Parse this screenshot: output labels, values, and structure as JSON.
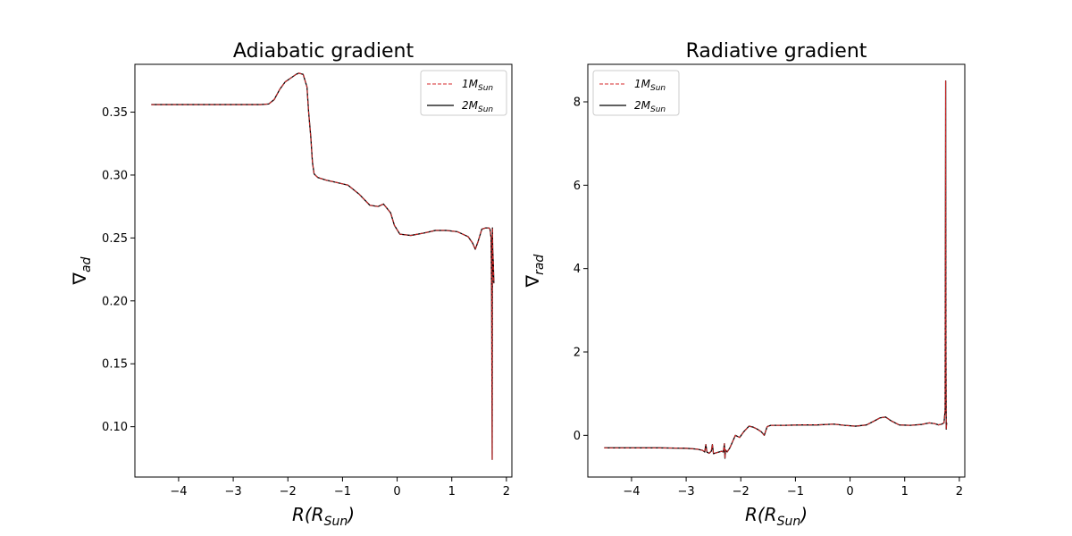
{
  "chart_data": [
    {
      "type": "line",
      "title": "Adiabatic gradient",
      "xlabel": {
        "base": "R(R",
        "sub": "Sun",
        "close": ")"
      },
      "ylabel": {
        "base": "∇",
        "sub": "ad"
      },
      "xlim": [
        -4.8,
        2.1
      ],
      "ylim": [
        0.06,
        0.388
      ],
      "xticks": [
        -4,
        -3,
        -2,
        -1,
        0,
        1,
        2
      ],
      "xtick_labels": [
        "−4",
        "−3",
        "−2",
        "−1",
        "0",
        "1",
        "2"
      ],
      "yticks": [
        0.1,
        0.15,
        0.2,
        0.25,
        0.3,
        0.35
      ],
      "ytick_labels": [
        "0.10",
        "0.15",
        "0.20",
        "0.25",
        "0.30",
        "0.35"
      ],
      "legend_position": "top-right",
      "grid": false,
      "series": [
        {
          "name": {
            "base": "1M",
            "sub": "Sun"
          },
          "color": "#d62728",
          "style": "dashed",
          "x": [
            -4.5,
            -3.5,
            -2.5,
            -2.35,
            -2.25,
            -2.15,
            -2.05,
            -1.95,
            -1.85,
            -1.8,
            -1.72,
            -1.65,
            -1.62,
            -1.58,
            -1.55,
            -1.52,
            -1.5,
            -1.45,
            -1.3,
            -1.1,
            -0.9,
            -0.7,
            -0.5,
            -0.35,
            -0.25,
            -0.12,
            -0.05,
            0.05,
            0.25,
            0.5,
            0.7,
            0.9,
            1.1,
            1.3,
            1.38,
            1.43,
            1.48,
            1.55,
            1.62,
            1.68,
            1.7,
            1.72,
            1.73,
            1.735,
            1.74,
            1.742,
            1.744,
            1.746,
            1.75,
            1.76,
            1.77
          ],
          "y": [
            0.356,
            0.356,
            0.356,
            0.3565,
            0.36,
            0.368,
            0.374,
            0.377,
            0.38,
            0.381,
            0.38,
            0.37,
            0.35,
            0.33,
            0.31,
            0.301,
            0.3,
            0.298,
            0.296,
            0.294,
            0.292,
            0.285,
            0.276,
            0.275,
            0.277,
            0.27,
            0.26,
            0.253,
            0.252,
            0.254,
            0.256,
            0.256,
            0.255,
            0.251,
            0.246,
            0.241,
            0.247,
            0.257,
            0.258,
            0.258,
            0.257,
            0.25,
            0.2,
            0.13,
            0.074,
            0.2,
            0.258,
            0.25,
            0.24,
            0.23,
            0.214
          ]
        },
        {
          "name": {
            "base": "2M",
            "sub": "Sun"
          },
          "color": "#000000",
          "style": "solid",
          "x": [
            -4.5,
            -3.5,
            -2.5,
            -2.35,
            -2.25,
            -2.15,
            -2.05,
            -1.95,
            -1.85,
            -1.8,
            -1.72,
            -1.65,
            -1.62,
            -1.58,
            -1.55,
            -1.52,
            -1.5,
            -1.45,
            -1.3,
            -1.1,
            -0.9,
            -0.7,
            -0.5,
            -0.35,
            -0.25,
            -0.12,
            -0.05,
            0.05,
            0.25,
            0.5,
            0.7,
            0.9,
            1.1,
            1.3,
            1.38,
            1.43,
            1.48,
            1.55,
            1.62,
            1.68,
            1.7,
            1.72,
            1.73,
            1.735,
            1.74,
            1.742,
            1.744,
            1.746,
            1.75,
            1.76,
            1.77
          ],
          "y": [
            0.356,
            0.356,
            0.356,
            0.3565,
            0.36,
            0.368,
            0.374,
            0.377,
            0.38,
            0.381,
            0.38,
            0.37,
            0.35,
            0.33,
            0.31,
            0.301,
            0.3,
            0.298,
            0.296,
            0.294,
            0.292,
            0.285,
            0.276,
            0.275,
            0.277,
            0.27,
            0.26,
            0.253,
            0.252,
            0.254,
            0.256,
            0.256,
            0.255,
            0.251,
            0.246,
            0.241,
            0.247,
            0.257,
            0.258,
            0.258,
            0.257,
            0.25,
            0.2,
            0.13,
            0.074,
            0.2,
            0.258,
            0.25,
            0.24,
            0.23,
            0.214
          ]
        }
      ]
    },
    {
      "type": "line",
      "title": "Radiative gradient",
      "xlabel": {
        "base": "R(R",
        "sub": "Sun",
        "close": ")"
      },
      "ylabel": {
        "base": "∇",
        "sub": "rad"
      },
      "xlim": [
        -4.8,
        2.1
      ],
      "ylim": [
        -1.0,
        8.9
      ],
      "xticks": [
        -4,
        -3,
        -2,
        -1,
        0,
        1,
        2
      ],
      "xtick_labels": [
        "−4",
        "−3",
        "−2",
        "−1",
        "0",
        "1",
        "2"
      ],
      "yticks": [
        0,
        2,
        4,
        6,
        8
      ],
      "ytick_labels": [
        "0",
        "2",
        "4",
        "6",
        "8"
      ],
      "legend_position": "top-left",
      "grid": false,
      "series": [
        {
          "name": {
            "base": "1M",
            "sub": "Sun"
          },
          "color": "#d62728",
          "style": "dashed",
          "x": [
            -4.5,
            -3.5,
            -3.0,
            -2.8,
            -2.7,
            -2.66,
            -2.64,
            -2.62,
            -2.58,
            -2.54,
            -2.52,
            -2.5,
            -2.45,
            -2.35,
            -2.32,
            -2.3,
            -2.29,
            -2.28,
            -2.25,
            -2.2,
            -2.1,
            -2.02,
            -1.95,
            -1.9,
            -1.85,
            -1.78,
            -1.7,
            -1.62,
            -1.57,
            -1.52,
            -1.5,
            -1.45,
            -1.2,
            -0.9,
            -0.6,
            -0.3,
            -0.1,
            0.1,
            0.3,
            0.45,
            0.55,
            0.65,
            0.75,
            0.9,
            1.1,
            1.3,
            1.45,
            1.55,
            1.62,
            1.68,
            1.72,
            1.74,
            1.75,
            1.755,
            1.76,
            1.765,
            1.77
          ],
          "y": [
            -0.3,
            -0.3,
            -0.31,
            -0.33,
            -0.36,
            -0.4,
            -0.22,
            -0.4,
            -0.43,
            -0.38,
            -0.22,
            -0.44,
            -0.42,
            -0.38,
            -0.4,
            -0.2,
            -0.55,
            -0.35,
            -0.4,
            -0.3,
            0.0,
            -0.05,
            0.08,
            0.15,
            0.22,
            0.2,
            0.15,
            0.08,
            0.0,
            0.2,
            0.22,
            0.24,
            0.24,
            0.25,
            0.25,
            0.27,
            0.24,
            0.22,
            0.25,
            0.35,
            0.42,
            0.44,
            0.35,
            0.25,
            0.24,
            0.26,
            0.3,
            0.28,
            0.25,
            0.27,
            0.3,
            0.6,
            8.5,
            2.0,
            0.15,
            0.25,
            0.3
          ]
        },
        {
          "name": {
            "base": "2M",
            "sub": "Sun"
          },
          "color": "#000000",
          "style": "solid",
          "x": [
            -4.5,
            -3.5,
            -3.0,
            -2.8,
            -2.7,
            -2.66,
            -2.64,
            -2.62,
            -2.58,
            -2.54,
            -2.52,
            -2.5,
            -2.45,
            -2.35,
            -2.32,
            -2.3,
            -2.29,
            -2.28,
            -2.25,
            -2.2,
            -2.1,
            -2.02,
            -1.95,
            -1.9,
            -1.85,
            -1.78,
            -1.7,
            -1.62,
            -1.57,
            -1.52,
            -1.5,
            -1.45,
            -1.2,
            -0.9,
            -0.6,
            -0.3,
            -0.1,
            0.1,
            0.3,
            0.45,
            0.55,
            0.65,
            0.75,
            0.9,
            1.1,
            1.3,
            1.45,
            1.55,
            1.62,
            1.68,
            1.72,
            1.74,
            1.75,
            1.755,
            1.76,
            1.765,
            1.77
          ],
          "y": [
            -0.3,
            -0.3,
            -0.31,
            -0.33,
            -0.36,
            -0.4,
            -0.22,
            -0.4,
            -0.43,
            -0.38,
            -0.22,
            -0.44,
            -0.42,
            -0.38,
            -0.4,
            -0.2,
            -0.55,
            -0.35,
            -0.4,
            -0.3,
            0.0,
            -0.05,
            0.08,
            0.15,
            0.22,
            0.2,
            0.15,
            0.08,
            0.0,
            0.2,
            0.22,
            0.24,
            0.24,
            0.25,
            0.25,
            0.27,
            0.24,
            0.22,
            0.25,
            0.35,
            0.42,
            0.44,
            0.35,
            0.25,
            0.24,
            0.26,
            0.3,
            0.28,
            0.25,
            0.27,
            0.3,
            0.6,
            8.5,
            2.0,
            0.15,
            0.25,
            0.3
          ]
        }
      ]
    }
  ]
}
